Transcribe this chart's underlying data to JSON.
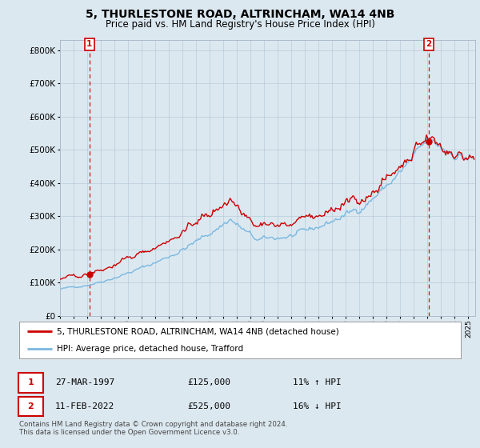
{
  "title": "5, THURLESTONE ROAD, ALTRINCHAM, WA14 4NB",
  "subtitle": "Price paid vs. HM Land Registry's House Price Index (HPI)",
  "legend_line1": "5, THURLESTONE ROAD, ALTRINCHAM, WA14 4NB (detached house)",
  "legend_line2": "HPI: Average price, detached house, Trafford",
  "sale1_date": "27-MAR-1997",
  "sale1_price": 125000,
  "sale1_hpi": "11% ↑ HPI",
  "sale2_date": "11-FEB-2022",
  "sale2_price": 525000,
  "sale2_hpi": "16% ↓ HPI",
  "footnote": "Contains HM Land Registry data © Crown copyright and database right 2024.\nThis data is licensed under the Open Government Licence v3.0.",
  "ylim": [
    0,
    830000
  ],
  "xlim_start": 1995,
  "xlim_end": 2025.5,
  "hpi_color": "#7ab8e0",
  "price_color": "#cc0000",
  "bg_color": "#dce8f0",
  "plot_bg": "#dce8f0",
  "grid_color": "#b8ccd8",
  "legend_bg": "#ffffff",
  "sale1_month_idx": 26,
  "sale2_month_idx": 325,
  "hpi_seed": 42,
  "noise_scale_hpi": 0.012,
  "noise_scale_prop": 0.01
}
